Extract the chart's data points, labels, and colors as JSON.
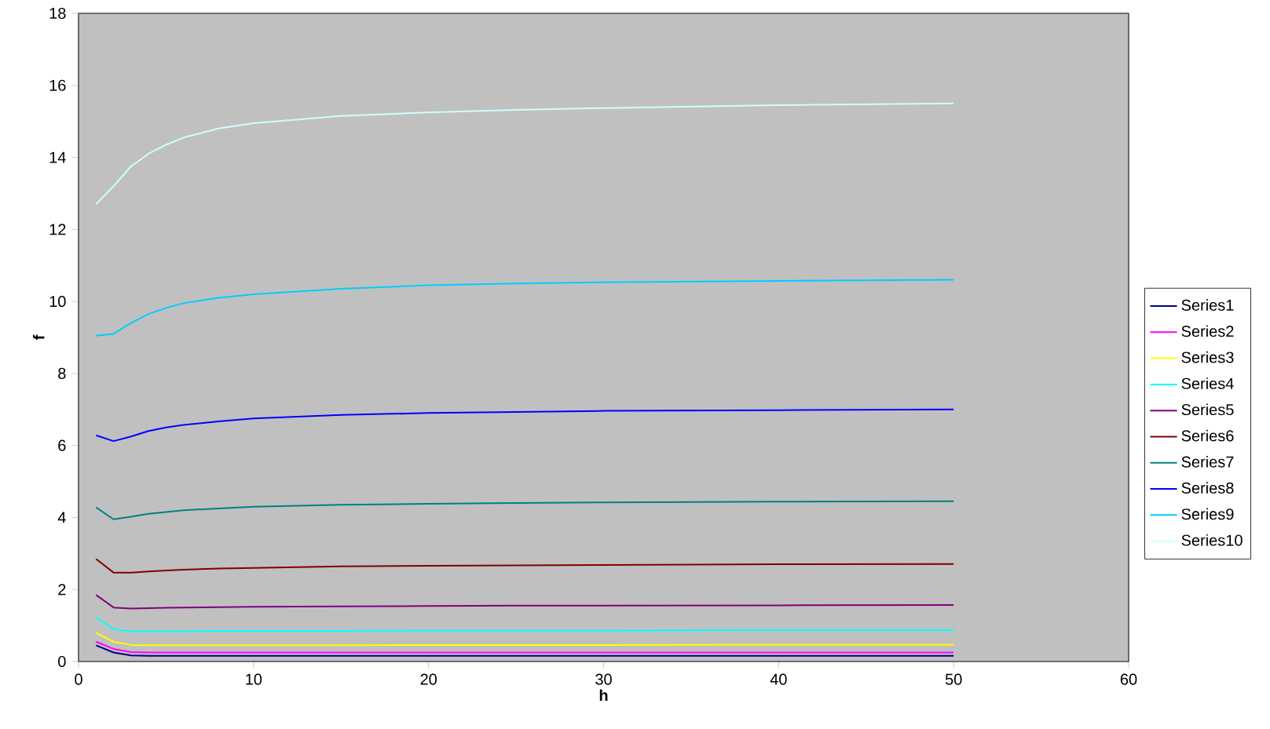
{
  "chart_data": {
    "type": "line",
    "xlabel": "h",
    "ylabel": "f",
    "x": [
      1,
      2,
      3,
      4,
      5,
      6,
      8,
      10,
      15,
      20,
      25,
      30,
      40,
      50
    ],
    "series": [
      {
        "name": "Series1",
        "color": "#000080",
        "values": [
          0.45,
          0.25,
          0.17,
          0.16,
          0.16,
          0.16,
          0.16,
          0.16,
          0.16,
          0.16,
          0.16,
          0.16,
          0.16,
          0.16
        ]
      },
      {
        "name": "Series2",
        "color": "#ff00ff",
        "values": [
          0.55,
          0.35,
          0.26,
          0.25,
          0.25,
          0.25,
          0.25,
          0.25,
          0.25,
          0.25,
          0.25,
          0.25,
          0.25,
          0.25
        ]
      },
      {
        "name": "Series3",
        "color": "#ffff00",
        "values": [
          0.8,
          0.55,
          0.46,
          0.45,
          0.45,
          0.45,
          0.45,
          0.45,
          0.45,
          0.46,
          0.46,
          0.46,
          0.47,
          0.47
        ]
      },
      {
        "name": "Series4",
        "color": "#00ffff",
        "values": [
          1.22,
          0.9,
          0.84,
          0.84,
          0.84,
          0.84,
          0.85,
          0.85,
          0.85,
          0.86,
          0.86,
          0.86,
          0.87,
          0.87
        ]
      },
      {
        "name": "Series5",
        "color": "#800080",
        "values": [
          1.85,
          1.5,
          1.47,
          1.48,
          1.49,
          1.5,
          1.51,
          1.52,
          1.53,
          1.54,
          1.55,
          1.55,
          1.56,
          1.57
        ]
      },
      {
        "name": "Series6",
        "color": "#800000",
        "values": [
          2.85,
          2.47,
          2.47,
          2.5,
          2.53,
          2.55,
          2.58,
          2.6,
          2.64,
          2.66,
          2.67,
          2.68,
          2.7,
          2.71
        ]
      },
      {
        "name": "Series7",
        "color": "#008080",
        "values": [
          4.28,
          3.95,
          4.02,
          4.1,
          4.15,
          4.2,
          4.25,
          4.3,
          4.35,
          4.38,
          4.4,
          4.42,
          4.44,
          4.45
        ]
      },
      {
        "name": "Series8",
        "color": "#0000ff",
        "values": [
          6.28,
          6.12,
          6.25,
          6.4,
          6.5,
          6.57,
          6.67,
          6.75,
          6.85,
          6.9,
          6.93,
          6.96,
          6.98,
          7.0
        ]
      },
      {
        "name": "Series9",
        "color": "#00ccff",
        "values": [
          9.05,
          9.1,
          9.4,
          9.65,
          9.82,
          9.95,
          10.1,
          10.2,
          10.35,
          10.45,
          10.5,
          10.53,
          10.57,
          10.6
        ]
      },
      {
        "name": "Series10",
        "color": "#ccffff",
        "values": [
          12.7,
          13.2,
          13.75,
          14.1,
          14.35,
          14.55,
          14.8,
          14.95,
          15.15,
          15.25,
          15.32,
          15.37,
          15.45,
          15.5
        ]
      }
    ],
    "xlim": [
      0,
      60
    ],
    "xticks": [
      0,
      10,
      20,
      30,
      40,
      50,
      60
    ],
    "ylim": [
      0,
      18
    ],
    "yticks": [
      0,
      2,
      4,
      6,
      8,
      10,
      12,
      14,
      16,
      18
    ],
    "grid": false,
    "legend": "right",
    "marker": "none",
    "line_style": "solid"
  }
}
